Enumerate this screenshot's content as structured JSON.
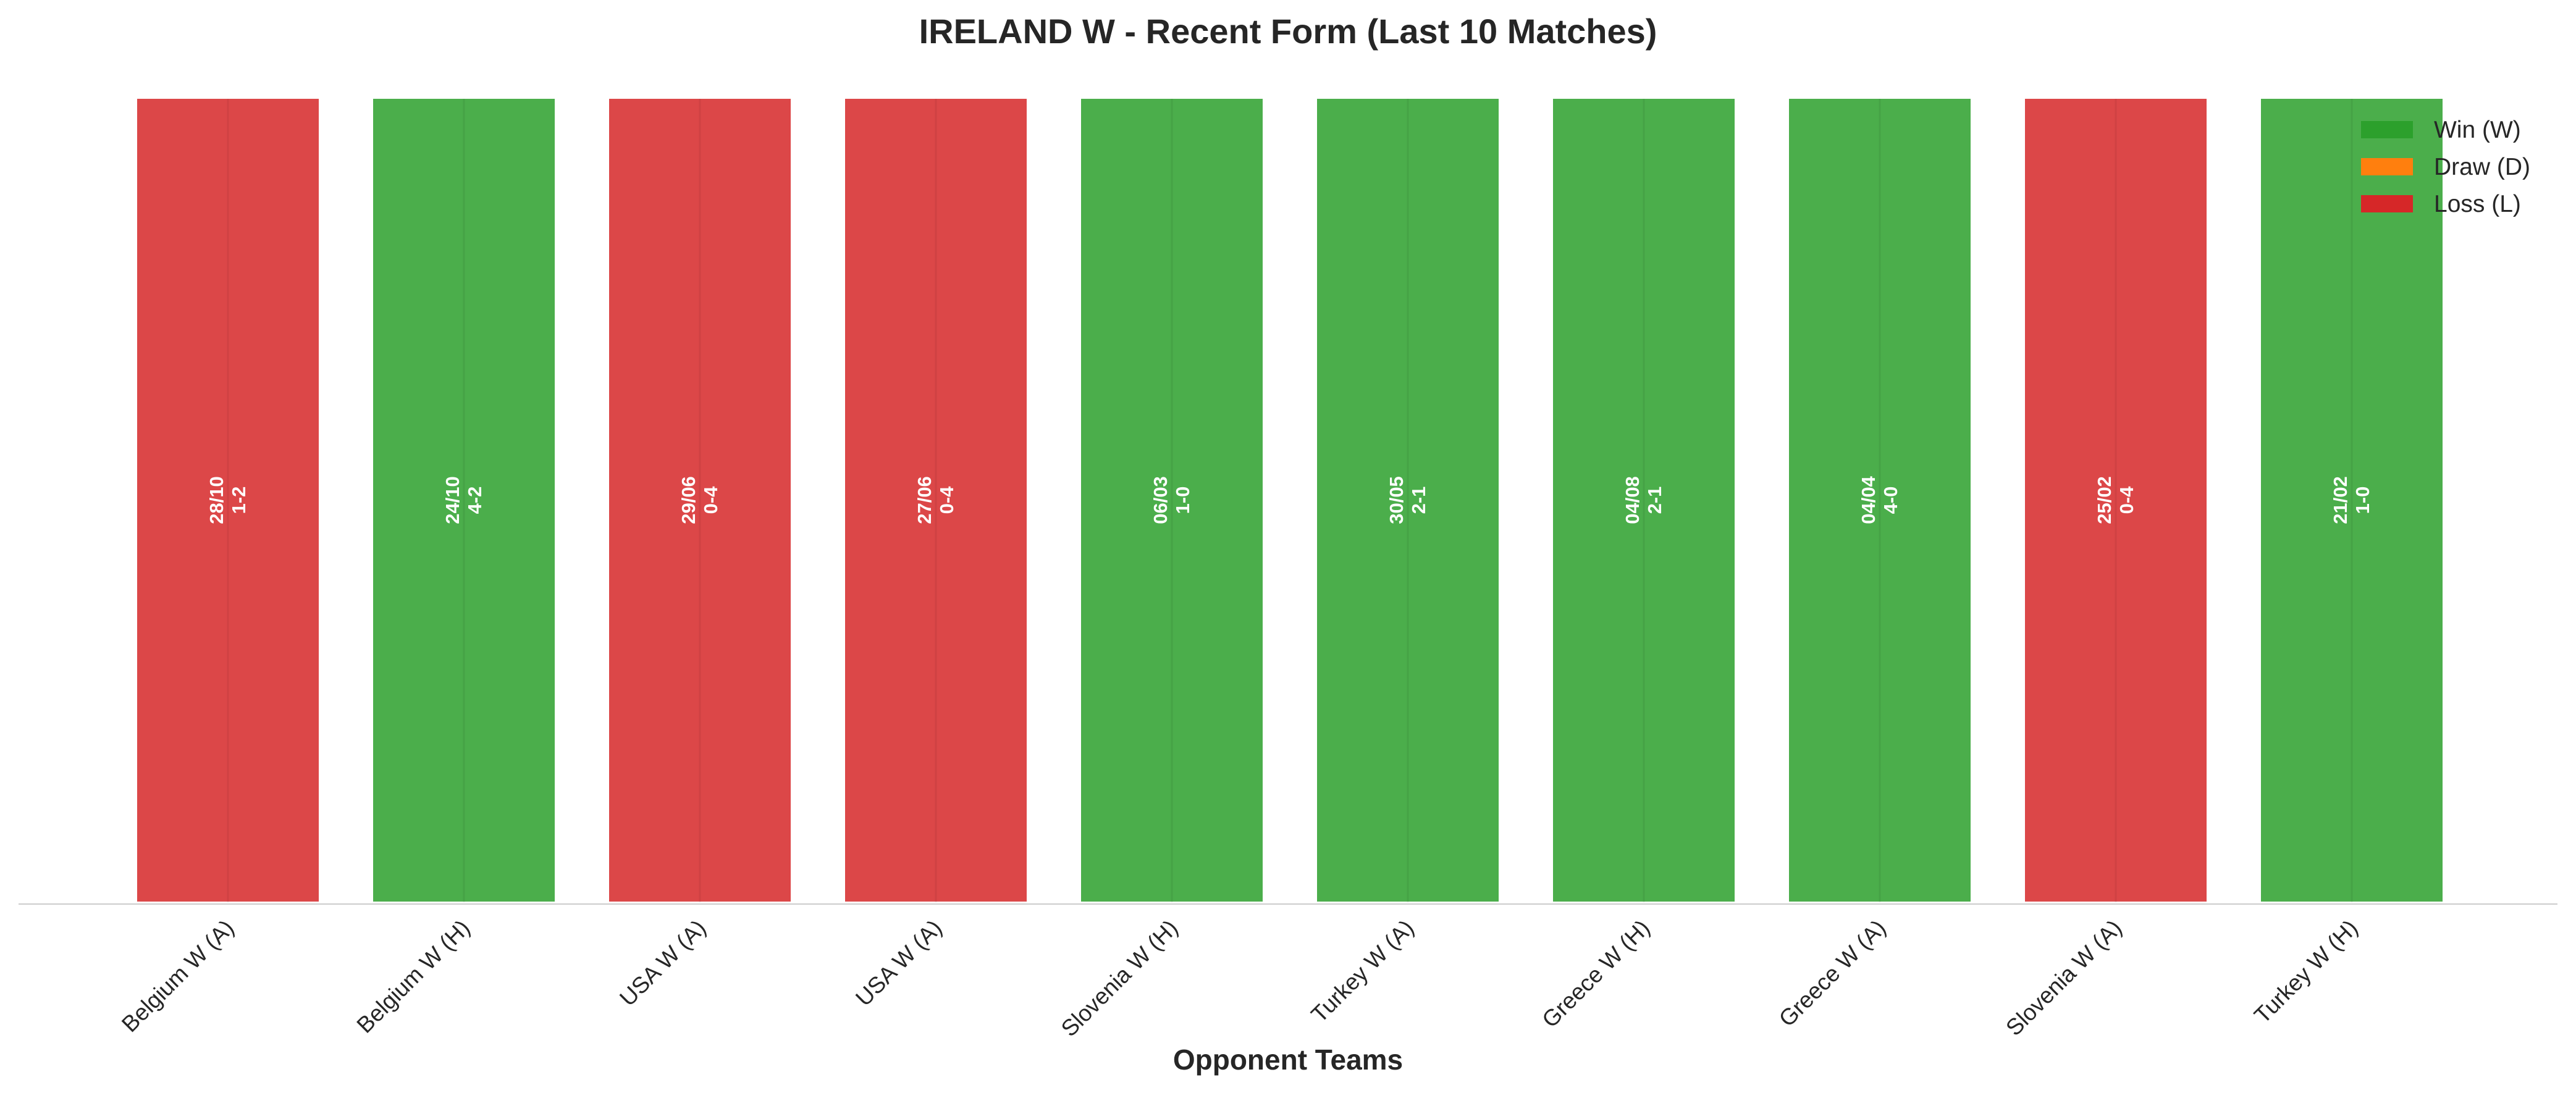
{
  "chart_data": {
    "type": "bar",
    "title": "IRELAND W - Recent Form (Last 10 Matches)",
    "xlabel": "Opponent Teams",
    "ylabel": "",
    "ylim": [
      0,
      1
    ],
    "grid": false,
    "legend_position": "top-right",
    "categories": [
      "Belgium W (A)",
      "Belgium W (H)",
      "USA W (A)",
      "USA W (A)",
      "Slovenia W (H)",
      "Turkey W (A)",
      "Greece W (H)",
      "Greece W (A)",
      "Slovenia W (A)",
      "Turkey W (H)"
    ],
    "values": [
      1,
      1,
      1,
      1,
      1,
      1,
      1,
      1,
      1,
      1
    ],
    "results": [
      "L",
      "W",
      "L",
      "L",
      "W",
      "W",
      "W",
      "W",
      "L",
      "W"
    ],
    "dates": [
      "28/10",
      "24/10",
      "29/06",
      "27/06",
      "06/03",
      "30/05",
      "04/08",
      "04/04",
      "25/02",
      "21/02"
    ],
    "scores": [
      "1-2",
      "4-2",
      "0-4",
      "0-4",
      "1-0",
      "2-1",
      "2-1",
      "4-0",
      "0-4",
      "1-0"
    ],
    "legend": [
      {
        "key": "W",
        "label": "Win (W)",
        "color": "#2ca02c"
      },
      {
        "key": "D",
        "label": "Draw (D)",
        "color": "#ff7f0e"
      },
      {
        "key": "L",
        "label": "Loss (L)",
        "color": "#d62728"
      }
    ]
  }
}
